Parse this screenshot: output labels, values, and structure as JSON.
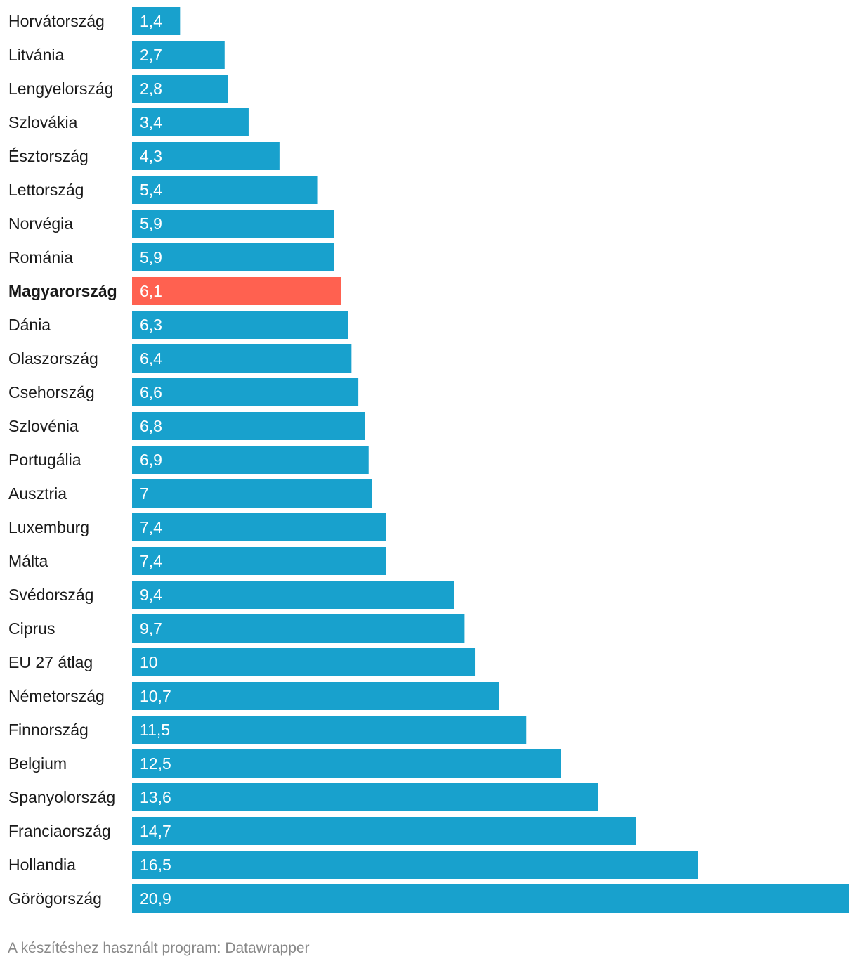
{
  "chart_data": {
    "type": "bar",
    "orientation": "horizontal",
    "categories": [
      "Horvátország",
      "Litvánia",
      "Lengyelország",
      "Szlovákia",
      "Észtország",
      "Lettország",
      "Norvégia",
      "Románia",
      "Magyarország",
      "Dánia",
      "Olaszország",
      "Csehország",
      "Szlovénia",
      "Portugália",
      "Ausztria",
      "Luxemburg",
      "Málta",
      "Svédország",
      "Ciprus",
      "EU 27 átlag",
      "Németország",
      "Finnország",
      "Belgium",
      "Spanyolország",
      "Franciaország",
      "Hollandia",
      "Görögország"
    ],
    "values": [
      1.4,
      2.7,
      2.8,
      3.4,
      4.3,
      5.4,
      5.9,
      5.9,
      6.1,
      6.3,
      6.4,
      6.6,
      6.8,
      6.9,
      7,
      7.4,
      7.4,
      9.4,
      9.7,
      10,
      10.7,
      11.5,
      12.5,
      13.6,
      14.7,
      16.5,
      20.9
    ],
    "value_labels": [
      "1,4",
      "2,7",
      "2,8",
      "3,4",
      "4,3",
      "5,4",
      "5,9",
      "5,9",
      "6,1",
      "6,3",
      "6,4",
      "6,6",
      "6,8",
      "6,9",
      "7",
      "7,4",
      "7,4",
      "9,4",
      "9,7",
      "10",
      "10,7",
      "11,5",
      "12,5",
      "13,6",
      "14,7",
      "16,5",
      "20,9"
    ],
    "highlight": "Magyarország",
    "xlim": [
      0,
      20.9
    ],
    "grid": false,
    "legend": "none",
    "title": "",
    "xlabel": "",
    "ylabel": ""
  },
  "colors": {
    "bar": "#18a1cd",
    "highlight": "#ff6150",
    "label": "#1a1a1a",
    "value_text": "#ffffff",
    "footer": "#888888"
  },
  "footer": {
    "text": "A készítéshez használt program: Datawrapper"
  }
}
